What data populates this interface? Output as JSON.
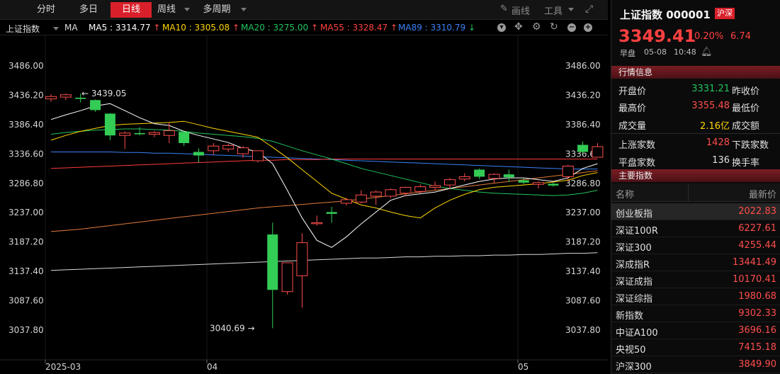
{
  "toolbar": {
    "tabs": [
      "分时",
      "多日",
      "日线",
      "周线",
      "多周期"
    ],
    "active_tab": "日线",
    "draw_label": "画线",
    "tools_label": "工具"
  },
  "ma_bar": {
    "index_name": "上证指数",
    "ma_label": "MA",
    "ma5": "MA5 : 3314.77",
    "ma10": "MA10 : 3305.08",
    "ma20": "MA20 : 3275.00",
    "ma55": "MA55 : 3328.47",
    "ma89": "MA89 : 3310.79",
    "colors": {
      "ma5": "#ffffff",
      "ma10": "#ffd400",
      "ma20": "#22c55e",
      "ma55": "#ff4040",
      "ma89": "#3b82f6"
    }
  },
  "chart_data": {
    "type": "candlestick",
    "y_ticks": [
      "3486.00",
      "3436.20",
      "3386.40",
      "3336.60",
      "3286.80",
      "3237.00",
      "3187.20",
      "3137.40",
      "3087.60",
      "3037.80"
    ],
    "ylim": [
      3037.8,
      3486.0
    ],
    "x_labels": [
      "2025-03",
      "04",
      "05"
    ],
    "annotations": {
      "high": "3439.05",
      "low": "3040.69"
    },
    "candles": [
      {
        "o": 3430,
        "h": 3438,
        "l": 3425,
        "c": 3434
      },
      {
        "o": 3433,
        "h": 3439,
        "l": 3428,
        "c": 3437
      },
      {
        "o": 3432,
        "h": 3439,
        "l": 3424,
        "c": 3430
      },
      {
        "o": 3428,
        "h": 3429,
        "l": 3408,
        "c": 3411
      },
      {
        "o": 3405,
        "h": 3406,
        "l": 3360,
        "c": 3368
      },
      {
        "o": 3368,
        "h": 3375,
        "l": 3345,
        "c": 3372
      },
      {
        "o": 3372,
        "h": 3382,
        "l": 3368,
        "c": 3370
      },
      {
        "o": 3370,
        "h": 3376,
        "l": 3365,
        "c": 3373
      },
      {
        "o": 3368,
        "h": 3390,
        "l": 3355,
        "c": 3376
      },
      {
        "o": 3374,
        "h": 3375,
        "l": 3350,
        "c": 3355
      },
      {
        "o": 3340,
        "h": 3346,
        "l": 3322,
        "c": 3334
      },
      {
        "o": 3342,
        "h": 3355,
        "l": 3335,
        "c": 3350
      },
      {
        "o": 3345,
        "h": 3354,
        "l": 3340,
        "c": 3351
      },
      {
        "o": 3337,
        "h": 3350,
        "l": 3330,
        "c": 3347
      },
      {
        "o": 3325,
        "h": 3342,
        "l": 3322,
        "c": 3342
      },
      {
        "o": 3200,
        "h": 3220,
        "l": 3041,
        "c": 3106
      },
      {
        "o": 3103,
        "h": 3152,
        "l": 3098,
        "c": 3152
      },
      {
        "o": 3130,
        "h": 3202,
        "l": 3076,
        "c": 3186
      },
      {
        "o": 3220,
        "h": 3232,
        "l": 3215,
        "c": 3220
      },
      {
        "o": 3238,
        "h": 3247,
        "l": 3220,
        "c": 3235
      },
      {
        "o": 3253,
        "h": 3262,
        "l": 3249,
        "c": 3259
      },
      {
        "o": 3255,
        "h": 3275,
        "l": 3253,
        "c": 3267
      },
      {
        "o": 3265,
        "h": 3275,
        "l": 3250,
        "c": 3272
      },
      {
        "o": 3265,
        "h": 3278,
        "l": 3262,
        "c": 3276
      },
      {
        "o": 3270,
        "h": 3281,
        "l": 3265,
        "c": 3280
      },
      {
        "o": 3273,
        "h": 3285,
        "l": 3270,
        "c": 3281
      },
      {
        "o": 3280,
        "h": 3290,
        "l": 3275,
        "c": 3283
      },
      {
        "o": 3284,
        "h": 3296,
        "l": 3277,
        "c": 3293
      },
      {
        "o": 3294,
        "h": 3304,
        "l": 3290,
        "c": 3298
      },
      {
        "o": 3310,
        "h": 3312,
        "l": 3294,
        "c": 3298
      },
      {
        "o": 3295,
        "h": 3304,
        "l": 3287,
        "c": 3302
      },
      {
        "o": 3302,
        "h": 3310,
        "l": 3289,
        "c": 3297
      },
      {
        "o": 3292,
        "h": 3295,
        "l": 3285,
        "c": 3288
      },
      {
        "o": 3285,
        "h": 3290,
        "l": 3278,
        "c": 3288
      },
      {
        "o": 3286,
        "h": 3288,
        "l": 3281,
        "c": 3283
      },
      {
        "o": 3298,
        "h": 3318,
        "l": 3290,
        "c": 3316
      },
      {
        "o": 3352,
        "h": 3358,
        "l": 3337,
        "c": 3340
      },
      {
        "o": 3331,
        "h": 3355,
        "l": 3331,
        "c": 3349
      }
    ],
    "ma5": [
      3395,
      3403,
      3410,
      3418,
      3422,
      3410,
      3398,
      3388,
      3385,
      3375,
      3368,
      3362,
      3356,
      3346,
      3340,
      3320,
      3275,
      3228,
      3190,
      3178,
      3196,
      3218,
      3238,
      3258,
      3266,
      3269,
      3272,
      3278,
      3284,
      3290,
      3294,
      3296,
      3296,
      3293,
      3290,
      3296,
      3312,
      3320
    ],
    "ma10": [
      3360,
      3368,
      3375,
      3380,
      3385,
      3387,
      3388,
      3389,
      3390,
      3392,
      3386,
      3380,
      3375,
      3370,
      3365,
      3348,
      3330,
      3310,
      3290,
      3270,
      3260,
      3250,
      3245,
      3238,
      3232,
      3228,
      3245,
      3258,
      3268,
      3276,
      3280,
      3282,
      3284,
      3286,
      3289,
      3292,
      3300,
      3305
    ],
    "ma20": [
      3370,
      3373,
      3375,
      3377,
      3378,
      3379,
      3379,
      3378,
      3377,
      3375,
      3372,
      3370,
      3368,
      3366,
      3363,
      3358,
      3350,
      3342,
      3335,
      3328,
      3320,
      3312,
      3306,
      3300,
      3294,
      3288,
      3282,
      3278,
      3275,
      3272,
      3270,
      3269,
      3268,
      3267,
      3266,
      3267,
      3270,
      3275
    ],
    "ma55": [
      3312,
      3313,
      3314,
      3315,
      3316,
      3317,
      3318,
      3319,
      3320,
      3321,
      3322,
      3323,
      3324,
      3325,
      3326,
      3326,
      3327,
      3327,
      3327,
      3328,
      3328,
      3328,
      3328,
      3328,
      3328,
      3328,
      3328,
      3328,
      3328,
      3328,
      3328,
      3328,
      3328,
      3328,
      3328,
      3328,
      3328,
      3328
    ],
    "ma89": [
      3340,
      3340,
      3340,
      3340,
      3340,
      3339,
      3339,
      3338,
      3338,
      3337,
      3336,
      3335,
      3334,
      3333,
      3332,
      3331,
      3330,
      3329,
      3328,
      3327,
      3326,
      3325,
      3324,
      3323,
      3322,
      3321,
      3320,
      3319,
      3318,
      3317,
      3316,
      3315,
      3314,
      3313,
      3312,
      3311,
      3311,
      3311
    ],
    "ma_orange": [
      3205,
      3207,
      3209,
      3212,
      3215,
      3218,
      3221,
      3224,
      3227,
      3230,
      3233,
      3236,
      3239,
      3242,
      3245,
      3247,
      3249,
      3251,
      3253,
      3255,
      3257,
      3260,
      3263,
      3266,
      3269,
      3272,
      3275,
      3278,
      3281,
      3284,
      3287,
      3290,
      3293,
      3296,
      3299,
      3302,
      3305,
      3308
    ],
    "ma_long": [
      3139,
      3140,
      3141,
      3142,
      3143,
      3144,
      3145,
      3146,
      3147,
      3148,
      3149,
      3150,
      3151,
      3152,
      3153,
      3154,
      3155,
      3156,
      3157,
      3158,
      3159,
      3160,
      3160,
      3161,
      3162,
      3162,
      3163,
      3163,
      3164,
      3164,
      3165,
      3165,
      3166,
      3166,
      3167,
      3168,
      3168,
      3169
    ]
  },
  "panel": {
    "title": "上证指数 000001",
    "market_badge": "沪深",
    "price": "3349.41",
    "pct": "0.20%",
    "change": "6.74",
    "session": "早盘",
    "date": "05-08",
    "time": "10:48",
    "quote_header": "行情信息",
    "open_label": "开盘价",
    "open": "3331.21",
    "prev_close_label": "昨收价",
    "high_label": "最高价",
    "high": "3355.48",
    "low_label": "最低价",
    "vol_label": "成交量",
    "vol": "2.16亿",
    "amount_label": "成交额",
    "up_label": "上涨家数",
    "up": "1428",
    "down_label": "下跌家数",
    "flat_label": "平盘家数",
    "flat": "136",
    "turnover_label": "换手率",
    "major_header": "主要指数",
    "col_name": "名称",
    "col_price": "最新价",
    "indices": [
      {
        "name": "创业板指",
        "price": "2022.83"
      },
      {
        "name": "深证100R",
        "price": "6227.61"
      },
      {
        "name": "深证300",
        "price": "4255.44"
      },
      {
        "name": "深成指R",
        "price": "13441.49"
      },
      {
        "name": "深证成指",
        "price": "10170.41"
      },
      {
        "name": "深证综指",
        "price": "1980.68"
      },
      {
        "name": "新指数",
        "price": "9302.33"
      },
      {
        "name": "中证A100",
        "price": "3696.16"
      },
      {
        "name": "央视50",
        "price": "7415.18"
      },
      {
        "name": "沪深300",
        "price": "3849.90"
      }
    ]
  }
}
